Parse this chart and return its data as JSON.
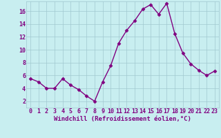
{
  "x": [
    0,
    1,
    2,
    3,
    4,
    5,
    6,
    7,
    8,
    9,
    10,
    11,
    12,
    13,
    14,
    15,
    16,
    17,
    18,
    19,
    20,
    21,
    22,
    23
  ],
  "y": [
    5.5,
    5.0,
    4.0,
    4.0,
    5.5,
    4.5,
    3.8,
    2.8,
    2.0,
    5.0,
    7.5,
    11.0,
    13.0,
    14.5,
    16.3,
    17.0,
    15.5,
    17.2,
    12.5,
    9.5,
    7.8,
    6.8,
    6.0,
    6.7
  ],
  "line_color": "#800080",
  "marker": "D",
  "marker_size": 2.5,
  "bg_color": "#c8eef0",
  "grid_color": "#a0c8d0",
  "xlabel": "Windchill (Refroidissement éolien,°C)",
  "xlabel_color": "#800080",
  "tick_color": "#800080",
  "ylim": [
    1,
    17.5
  ],
  "yticks": [
    2,
    4,
    6,
    8,
    10,
    12,
    14,
    16
  ],
  "xlim": [
    -0.5,
    23.5
  ],
  "xticks": [
    0,
    1,
    2,
    3,
    4,
    5,
    6,
    7,
    8,
    9,
    10,
    11,
    12,
    13,
    14,
    15,
    16,
    17,
    18,
    19,
    20,
    21,
    22,
    23
  ],
  "font_size_ticks": 6,
  "font_size_label": 6.5,
  "line_width": 1.0
}
